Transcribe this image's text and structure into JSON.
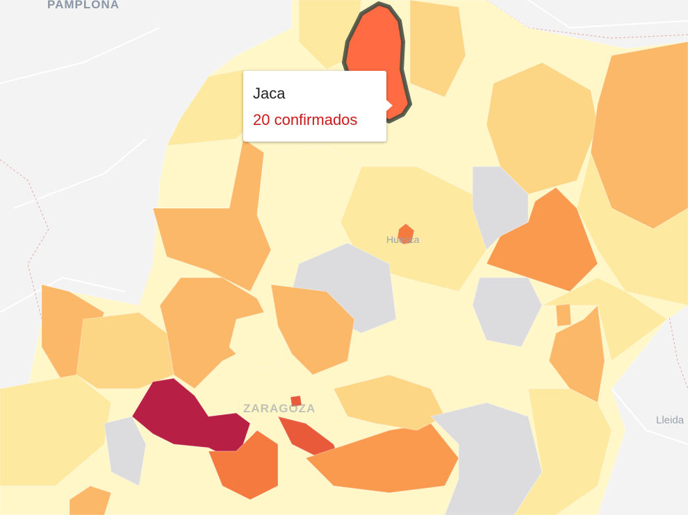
{
  "map": {
    "city_labels": {
      "pamplona": "PAMPLONA",
      "huesca": "Huesca",
      "zaragoza": "ZARAGOZA",
      "lleida": "Lleida"
    },
    "colors": {
      "c0": "#fff7c8",
      "c1": "#fde9a0",
      "c2": "#fcd585",
      "c3": "#fbb868",
      "c4": "#f99a4f",
      "c5": "#f47a40",
      "c6": "#e85a3a",
      "c7": "#b81f45",
      "no_data": "#dcdcde",
      "selected": "#ff6b43"
    }
  },
  "tooltip": {
    "municipality": "Jaca",
    "value_text": "20 confirmados",
    "value_color": "#cc1a1a"
  }
}
